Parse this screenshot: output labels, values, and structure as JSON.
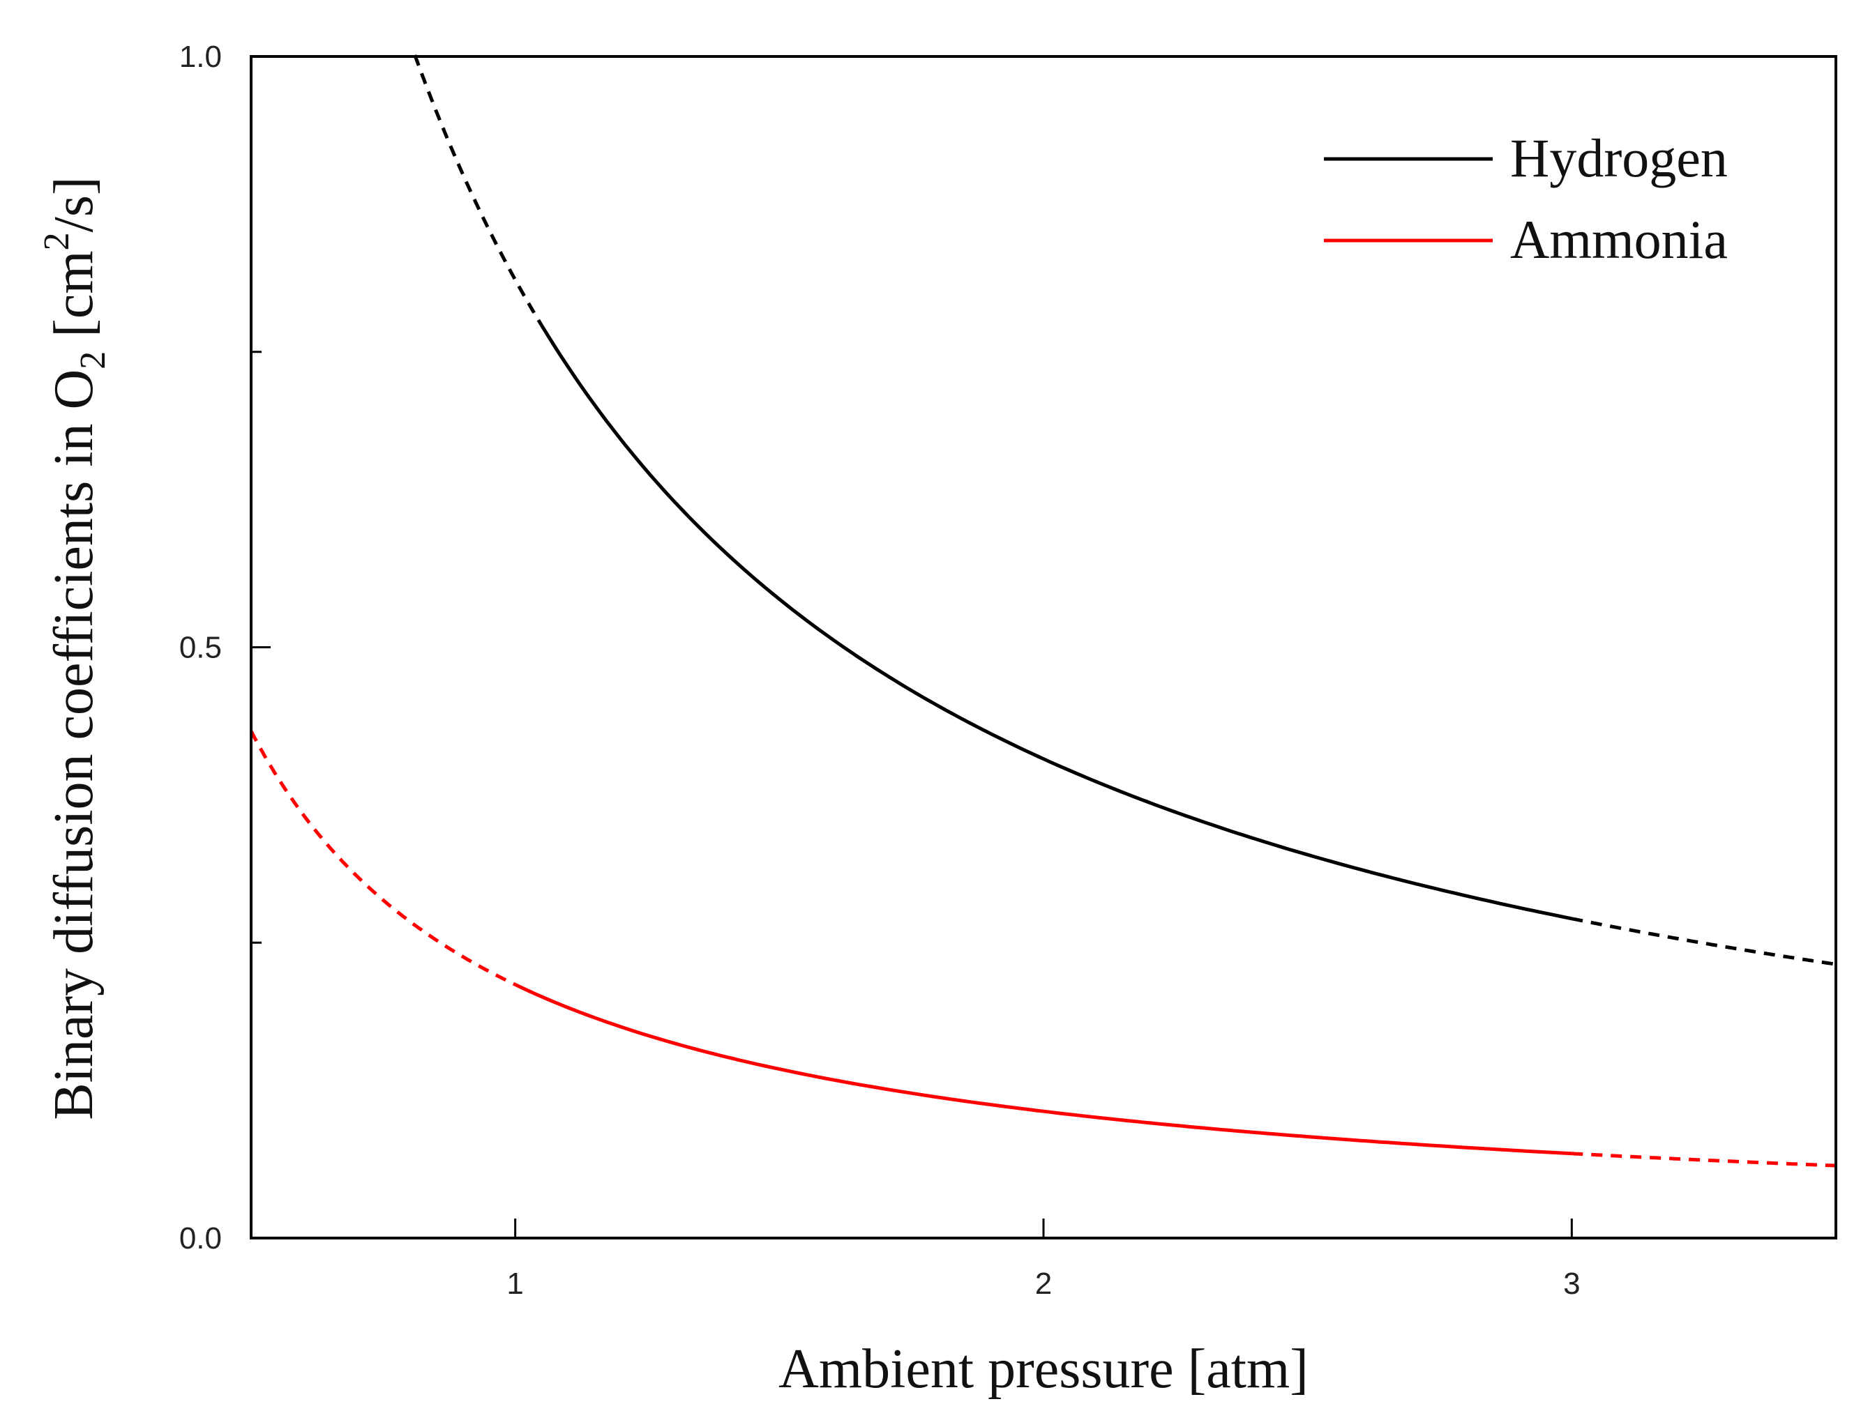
{
  "chart_data": {
    "type": "line",
    "title": "",
    "xlabel": "Ambient pressure [atm]",
    "ylabel": {
      "main": "Binary diffusion coefficients in O",
      "sub": "2",
      "unit_pre": "[cm",
      "sup": "2",
      "unit_post": "/s]"
    },
    "xlim": [
      0.5,
      3.5
    ],
    "ylim": [
      0.0,
      1.0
    ],
    "xticks": [
      1,
      2,
      3
    ],
    "xtick_labels": [
      "1",
      "2",
      "3"
    ],
    "yticks": [
      0.0,
      0.5,
      1.0
    ],
    "ytick_labels": [
      "0.0",
      "0.5",
      "1.0"
    ],
    "yminor_ticks": [
      0.25,
      0.75
    ],
    "grid": false,
    "legend_position": "top-right",
    "series": [
      {
        "name": "Hydrogen",
        "color": "#000000",
        "coefficient": 0.811,
        "solid_range": [
          1.05,
          3.0
        ],
        "dashed_ranges": [
          [
            0.81,
            1.05
          ],
          [
            3.0,
            3.5
          ]
        ],
        "x": [
          0.81,
          1.0,
          1.5,
          2.0,
          2.5,
          3.0,
          3.5
        ],
        "values": [
          1.0,
          0.811,
          0.541,
          0.406,
          0.324,
          0.27,
          0.232
        ]
      },
      {
        "name": "Ammonia",
        "color": "#ff0000",
        "coefficient": 0.2145,
        "solid_range": [
          1.0,
          3.0
        ],
        "dashed_ranges": [
          [
            0.5,
            1.0
          ],
          [
            3.0,
            3.5
          ]
        ],
        "x": [
          0.5,
          1.0,
          1.5,
          2.0,
          2.5,
          3.0,
          3.5
        ],
        "values": [
          0.429,
          0.215,
          0.143,
          0.107,
          0.086,
          0.072,
          0.061
        ]
      }
    ]
  }
}
